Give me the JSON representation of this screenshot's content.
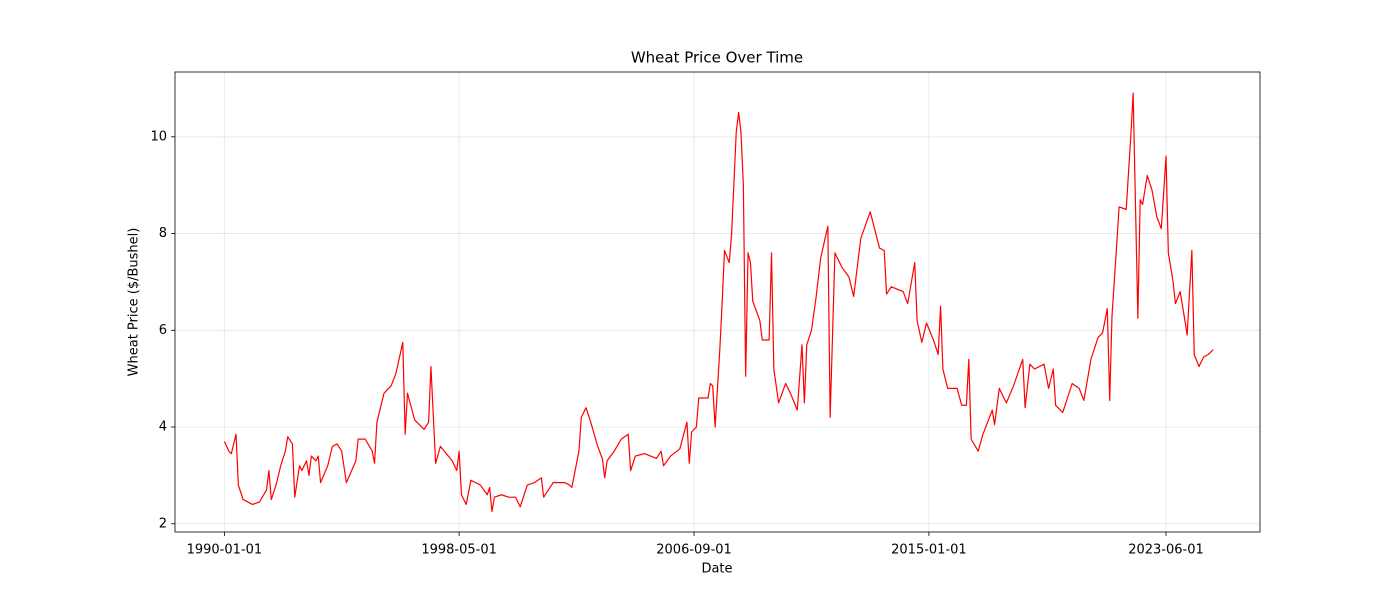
{
  "chart_data": {
    "type": "line",
    "title": "Wheat Price Over Time",
    "xlabel": "Date",
    "ylabel": "Wheat Price ($/Bushel)",
    "x": [
      "1990-01-01",
      "1990-03-01",
      "1990-04-01",
      "1990-06-01",
      "1990-07-01",
      "1990-09-01",
      "1991-01-01",
      "1991-04-01",
      "1991-07-01",
      "1991-08-01",
      "1991-09-01",
      "1991-11-01",
      "1992-01-01",
      "1992-03-01",
      "1992-04-01",
      "1992-06-01",
      "1992-07-01",
      "1992-09-01",
      "1992-10-01",
      "1992-12-01",
      "1993-01-01",
      "1993-02-01",
      "1993-04-01",
      "1993-05-01",
      "1993-06-01",
      "1993-09-01",
      "1993-11-01",
      "1994-01-01",
      "1994-03-01",
      "1994-05-01",
      "1994-09-01",
      "1994-10-01",
      "1995-01-01",
      "1995-04-01",
      "1995-05-01",
      "1995-06-01",
      "1995-09-01",
      "1995-12-01",
      "1996-02-01",
      "1996-05-01",
      "1996-06-01",
      "1996-07-01",
      "1996-10-01",
      "1997-02-01",
      "1997-04-01",
      "1997-05-01",
      "1997-07-01",
      "1997-09-01",
      "1998-02-01",
      "1998-04-01",
      "1998-05-01",
      "1998-06-01",
      "1998-08-01",
      "1998-10-01",
      "1999-02-01",
      "1999-05-01",
      "1999-06-01",
      "1999-07-01",
      "1999-08-01",
      "1999-11-01",
      "2000-02-01",
      "2000-05-01",
      "2000-07-01",
      "2000-10-01",
      "2001-01-01",
      "2001-04-01",
      "2001-05-01",
      "2001-09-01",
      "2002-02-01",
      "2002-04-01",
      "2002-05-01",
      "2002-08-01",
      "2002-09-01",
      "2002-11-01",
      "2003-01-01",
      "2003-04-01",
      "2003-06-01",
      "2003-07-01",
      "2003-08-01",
      "2003-11-01",
      "2004-02-01",
      "2004-05-01",
      "2004-06-01",
      "2004-08-01",
      "2004-12-01",
      "2005-05-01",
      "2005-07-01",
      "2005-08-01",
      "2005-11-01",
      "2006-03-01",
      "2006-06-01",
      "2006-07-01",
      "2006-08-01",
      "2006-10-01",
      "2006-11-01",
      "2007-03-01",
      "2007-04-01",
      "2007-05-01",
      "2007-06-01",
      "2007-08-01",
      "2007-09-01",
      "2007-10-01",
      "2007-12-01",
      "2008-01-01",
      "2008-03-01",
      "2008-04-01",
      "2008-05-01",
      "2008-06-01",
      "2008-07-01",
      "2008-08-01",
      "2008-09-01",
      "2008-10-01",
      "2009-01-01",
      "2009-02-01",
      "2009-05-01",
      "2009-06-01",
      "2009-07-01",
      "2009-09-01",
      "2009-12-01",
      "2010-02-01",
      "2010-05-01",
      "2010-07-01",
      "2010-08-01",
      "2010-09-01",
      "2010-11-01",
      "2011-01-01",
      "2011-03-01",
      "2011-06-01",
      "2011-07-01",
      "2011-09-01",
      "2011-12-01",
      "2012-03-01",
      "2012-05-01",
      "2012-08-01",
      "2012-12-01",
      "2013-04-01",
      "2013-06-01",
      "2013-07-01",
      "2013-09-01",
      "2014-02-01",
      "2014-04-01",
      "2014-07-01",
      "2014-08-01",
      "2014-10-01",
      "2014-12-01",
      "2015-03-01",
      "2015-05-01",
      "2015-06-01",
      "2015-07-01",
      "2015-09-01",
      "2016-01-01",
      "2016-03-01",
      "2016-05-01",
      "2016-06-01",
      "2016-07-01",
      "2016-10-01",
      "2016-12-01",
      "2017-04-01",
      "2017-05-01",
      "2017-07-01",
      "2017-10-01",
      "2018-01-01",
      "2018-05-01",
      "2018-06-01",
      "2018-08-01",
      "2018-10-01",
      "2019-02-01",
      "2019-04-01",
      "2019-06-01",
      "2019-07-01",
      "2019-10-01",
      "2020-02-01",
      "2020-05-01",
      "2020-07-01",
      "2020-10-01",
      "2021-01-01",
      "2021-03-01",
      "2021-05-01",
      "2021-06-01",
      "2021-07-01",
      "2021-09-01",
      "2021-10-01",
      "2022-01-01",
      "2022-03-01",
      "2022-04-01",
      "2022-06-01",
      "2022-07-01",
      "2022-08-01",
      "2022-10-01",
      "2022-12-01",
      "2023-02-01",
      "2023-04-01",
      "2023-06-01",
      "2023-07-01",
      "2023-09-01",
      "2023-10-01",
      "2023-12-01",
      "2024-02-01",
      "2024-03-01",
      "2024-05-01",
      "2024-06-01",
      "2024-08-01",
      "2024-10-01",
      "2024-12-01",
      "2025-02-01"
    ],
    "series": [
      {
        "name": "Wheat Price",
        "color": "#ff0000",
        "values": [
          3.7,
          3.5,
          3.45,
          3.85,
          2.8,
          2.5,
          2.4,
          2.45,
          2.7,
          3.1,
          2.5,
          2.8,
          3.2,
          3.5,
          3.8,
          3.65,
          2.55,
          3.2,
          3.1,
          3.3,
          3.0,
          3.4,
          3.3,
          3.4,
          2.85,
          3.2,
          3.6,
          3.65,
          3.5,
          2.85,
          3.3,
          3.75,
          3.75,
          3.5,
          3.25,
          4.1,
          4.7,
          4.85,
          5.1,
          5.75,
          3.85,
          4.7,
          4.15,
          3.95,
          4.1,
          5.25,
          3.25,
          3.6,
          3.3,
          3.1,
          3.5,
          2.6,
          2.4,
          2.9,
          2.8,
          2.6,
          2.75,
          2.25,
          2.55,
          2.6,
          2.55,
          2.55,
          2.35,
          2.8,
          2.85,
          2.95,
          2.55,
          2.85,
          2.85,
          2.8,
          2.75,
          3.5,
          4.2,
          4.4,
          4.1,
          3.6,
          3.35,
          2.95,
          3.3,
          3.5,
          3.75,
          3.85,
          3.1,
          3.4,
          3.45,
          3.35,
          3.5,
          3.2,
          3.4,
          3.55,
          4.1,
          3.25,
          3.9,
          4.0,
          4.6,
          4.6,
          4.9,
          4.85,
          4.0,
          5.6,
          6.6,
          7.65,
          7.4,
          8.0,
          10.1,
          10.5,
          10.1,
          9.0,
          5.05,
          7.6,
          7.4,
          6.6,
          6.2,
          5.8,
          5.8,
          7.6,
          5.2,
          4.5,
          4.9,
          4.7,
          4.35,
          5.7,
          4.5,
          5.7,
          6.0,
          6.7,
          7.5,
          8.15,
          4.2,
          7.6,
          7.3,
          7.1,
          6.7,
          7.9,
          8.45,
          7.7,
          7.65,
          6.75,
          6.9,
          6.8,
          6.55,
          7.4,
          6.2,
          5.75,
          6.15,
          5.8,
          5.5,
          6.5,
          5.2,
          4.8,
          4.8,
          4.45,
          4.45,
          5.4,
          3.75,
          3.5,
          3.85,
          4.35,
          4.05,
          4.8,
          4.5,
          4.85,
          5.4,
          4.4,
          5.3,
          5.2,
          5.3,
          4.8,
          5.2,
          4.45,
          4.3,
          4.9,
          4.8,
          4.55,
          5.4,
          5.85,
          5.95,
          6.45,
          4.55,
          6.3,
          7.8,
          8.55,
          8.5,
          10.0,
          10.9,
          6.25,
          8.7,
          8.6,
          9.2,
          8.9,
          8.35,
          8.1,
          9.6,
          7.6,
          7.0,
          6.55,
          6.8,
          6.2,
          5.9,
          7.65,
          5.5,
          5.25,
          5.45,
          5.5,
          5.6
        ]
      }
    ],
    "xlim": [
      "1988-04-01",
      "2026-10-01"
    ],
    "xticks": [
      "1990-01-01",
      "1998-05-01",
      "2006-09-01",
      "2015-01-01",
      "2023-06-01"
    ],
    "ylim": [
      1.83,
      11.34
    ],
    "yticks": [
      2,
      4,
      6,
      8,
      10
    ],
    "grid": true
  }
}
